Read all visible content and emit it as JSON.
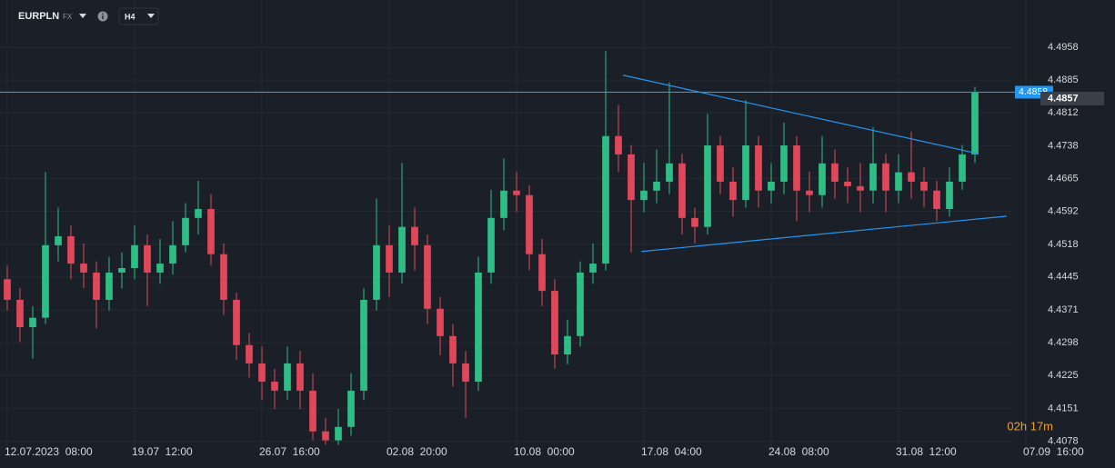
{
  "header": {
    "symbol": "EURPLN",
    "market": "FX",
    "timeframe": "H4"
  },
  "countdown": "02h 17m",
  "chart_data": {
    "type": "candlestick",
    "up_color": "#2ebd85",
    "down_color": "#e0475a",
    "open": [
      4.444,
      4.4394,
      4.4333,
      4.4354,
      4.4516,
      4.4536,
      4.4475,
      4.4455,
      4.4394,
      4.4455,
      4.4465,
      4.4516,
      4.4455,
      4.4475,
      4.4516,
      4.4577,
      4.4597,
      4.4496,
      4.4394,
      4.4293,
      4.4252,
      4.4211,
      4.4191,
      4.4252,
      4.4191,
      4.41,
      4.408,
      4.411,
      4.4191,
      4.4394,
      4.4516,
      4.4455,
      4.4557,
      4.4516,
      4.4374,
      4.4313,
      4.4252,
      4.4211,
      4.4455,
      4.4577,
      4.4638,
      4.4628,
      4.4496,
      4.4414,
      4.4272,
      4.4313,
      4.4455,
      4.4475,
      4.476,
      4.4719,
      4.4617,
      4.4638,
      4.4658,
      4.4699,
      4.4577,
      4.4557,
      4.4739,
      4.4658,
      4.4617,
      4.4739,
      4.4638,
      4.4658,
      4.4739,
      4.4638,
      4.4628,
      4.4699,
      4.4658,
      4.4648,
      4.4638,
      4.4699,
      4.4638,
      4.4679,
      4.4658,
      4.4638,
      4.4597,
      4.4658,
      4.4719
    ],
    "high": [
      4.447,
      4.442,
      4.438,
      4.468,
      4.46,
      4.456,
      4.452,
      4.448,
      4.449,
      4.45,
      4.456,
      4.454,
      4.453,
      4.457,
      4.461,
      4.466,
      4.463,
      4.452,
      4.441,
      4.432,
      4.429,
      4.424,
      4.429,
      4.428,
      4.423,
      4.413,
      4.415,
      4.423,
      4.442,
      4.462,
      4.456,
      4.47,
      4.46,
      4.454,
      4.44,
      4.434,
      4.428,
      4.449,
      4.464,
      4.471,
      4.468,
      4.465,
      4.453,
      4.444,
      4.435,
      4.448,
      4.452,
      4.495,
      4.483,
      4.474,
      4.47,
      4.473,
      4.488,
      4.472,
      4.46,
      4.481,
      4.476,
      4.469,
      4.484,
      4.476,
      4.47,
      4.479,
      4.476,
      4.468,
      4.476,
      4.473,
      4.469,
      4.47,
      4.478,
      4.472,
      4.472,
      4.477,
      4.469,
      4.466,
      4.469,
      4.474,
      4.487
    ],
    "low": [
      4.437,
      4.43,
      4.4262,
      4.434,
      4.448,
      4.444,
      4.442,
      4.433,
      4.437,
      4.442,
      4.444,
      4.438,
      4.443,
      4.445,
      4.45,
      4.454,
      4.447,
      4.436,
      4.426,
      4.422,
      4.417,
      4.415,
      4.417,
      4.415,
      4.408,
      4.407,
      4.407,
      4.409,
      4.417,
      4.437,
      4.44,
      4.443,
      4.446,
      4.434,
      4.427,
      4.42,
      4.413,
      4.419,
      4.443,
      4.455,
      4.459,
      4.446,
      4.438,
      4.424,
      4.425,
      4.429,
      4.443,
      4.446,
      4.468,
      4.45,
      4.459,
      4.461,
      4.463,
      4.454,
      4.452,
      4.454,
      4.463,
      4.458,
      4.46,
      4.46,
      4.461,
      4.463,
      4.457,
      4.459,
      4.46,
      4.462,
      4.461,
      4.459,
      4.461,
      4.459,
      4.461,
      4.462,
      4.46,
      4.457,
      4.458,
      4.464,
      4.47
    ],
    "close": [
      4.4394,
      4.4333,
      4.4354,
      4.4516,
      4.4536,
      4.4475,
      4.4455,
      4.4394,
      4.4455,
      4.4465,
      4.4516,
      4.4455,
      4.4475,
      4.4516,
      4.4577,
      4.4597,
      4.4496,
      4.4394,
      4.4293,
      4.4252,
      4.4211,
      4.4191,
      4.4252,
      4.4191,
      4.41,
      4.408,
      4.411,
      4.4191,
      4.4394,
      4.4516,
      4.4455,
      4.4557,
      4.4516,
      4.4374,
      4.4313,
      4.4252,
      4.4211,
      4.4455,
      4.4577,
      4.4638,
      4.4628,
      4.4496,
      4.4414,
      4.4272,
      4.4313,
      4.4455,
      4.4475,
      4.476,
      4.4719,
      4.4617,
      4.4638,
      4.4658,
      4.4699,
      4.4577,
      4.4557,
      4.4739,
      4.4658,
      4.4617,
      4.4739,
      4.4638,
      4.4658,
      4.4739,
      4.4638,
      4.4628,
      4.4699,
      4.4658,
      4.4648,
      4.4638,
      4.4699,
      4.4638,
      4.4679,
      4.4658,
      4.4638,
      4.4597,
      4.4658,
      4.4719,
      4.4857
    ],
    "last_price_label": "4.4857",
    "xlim": [
      -0.57,
      87
    ],
    "xticks": [
      {
        "value": 0,
        "label": "12.07.2023  08:00"
      },
      {
        "value": 10,
        "label": "19.07  12:00"
      },
      {
        "value": 20,
        "label": "26.07  16:00"
      },
      {
        "value": 30,
        "label": "02.08  20:00"
      },
      {
        "value": 40,
        "label": "10.08  00:00"
      },
      {
        "value": 50,
        "label": "17.08  04:00"
      },
      {
        "value": 60,
        "label": "24.08  08:00"
      },
      {
        "value": 70,
        "label": "31.08  12:00"
      },
      {
        "value": 80,
        "label": "07.09  16:00"
      }
    ],
    "ylim": [
      4.4069,
      4.5064
    ],
    "yticks": [
      4.4958,
      4.4885,
      4.4812,
      4.4738,
      4.4665,
      4.4592,
      4.4518,
      4.4445,
      4.4371,
      4.4298,
      4.4225,
      4.4151,
      4.4078
    ],
    "hline": {
      "value": 4.4858,
      "label": "4.4858",
      "color": "#2196f3"
    },
    "trendlines": [
      {
        "x": [
          48.36,
          76.2
        ],
        "y": [
          4.4896,
          4.4721
        ]
      },
      {
        "x": [
          49.8,
          78.5
        ],
        "y": [
          4.4502,
          4.4581
        ]
      }
    ],
    "grid": true
  }
}
